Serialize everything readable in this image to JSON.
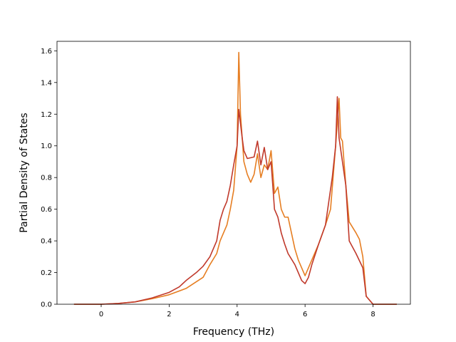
{
  "chart_data": {
    "type": "line",
    "xlabel": "Frequency (THz)",
    "ylabel": "Partial Density of States",
    "xlim": [
      -1.3,
      9.1
    ],
    "ylim": [
      0,
      1.66
    ],
    "xticks": [
      0,
      2,
      4,
      6,
      8
    ],
    "xtick_labels": [
      "0",
      "2",
      "4",
      "6",
      "8"
    ],
    "yticks": [
      0.0,
      0.2,
      0.4,
      0.6,
      0.8,
      1.0,
      1.2,
      1.4,
      1.6
    ],
    "ytick_labels": [
      "0.0",
      "0.2",
      "0.4",
      "0.6",
      "0.8",
      "1.0",
      "1.2",
      "1.4",
      "1.6"
    ],
    "grid": false,
    "series": [
      {
        "color": "#e67e22",
        "points": [
          [
            -0.8,
            0
          ],
          [
            0,
            0
          ],
          [
            0.5,
            0.005
          ],
          [
            1.0,
            0.015
          ],
          [
            1.5,
            0.035
          ],
          [
            2.0,
            0.06
          ],
          [
            2.5,
            0.1
          ],
          [
            3.0,
            0.17
          ],
          [
            3.2,
            0.25
          ],
          [
            3.4,
            0.32
          ],
          [
            3.5,
            0.4
          ],
          [
            3.6,
            0.45
          ],
          [
            3.7,
            0.5
          ],
          [
            3.8,
            0.6
          ],
          [
            3.9,
            0.72
          ],
          [
            4.0,
            1.0
          ],
          [
            4.05,
            1.59
          ],
          [
            4.1,
            1.2
          ],
          [
            4.2,
            0.9
          ],
          [
            4.3,
            0.82
          ],
          [
            4.4,
            0.77
          ],
          [
            4.5,
            0.82
          ],
          [
            4.6,
            0.95
          ],
          [
            4.7,
            0.8
          ],
          [
            4.8,
            0.88
          ],
          [
            4.9,
            0.85
          ],
          [
            5.0,
            0.97
          ],
          [
            5.1,
            0.7
          ],
          [
            5.2,
            0.74
          ],
          [
            5.3,
            0.6
          ],
          [
            5.4,
            0.55
          ],
          [
            5.5,
            0.55
          ],
          [
            5.6,
            0.45
          ],
          [
            5.7,
            0.35
          ],
          [
            5.8,
            0.28
          ],
          [
            6.0,
            0.18
          ],
          [
            6.2,
            0.28
          ],
          [
            6.4,
            0.38
          ],
          [
            6.6,
            0.5
          ],
          [
            6.75,
            0.6
          ],
          [
            6.9,
            1.0
          ],
          [
            7.0,
            1.3
          ],
          [
            7.05,
            1.05
          ],
          [
            7.1,
            1.03
          ],
          [
            7.2,
            0.75
          ],
          [
            7.3,
            0.52
          ],
          [
            7.5,
            0.45
          ],
          [
            7.6,
            0.41
          ],
          [
            7.7,
            0.3
          ],
          [
            7.8,
            0.05
          ],
          [
            8.0,
            0
          ],
          [
            8.7,
            0
          ]
        ]
      },
      {
        "color": "#c0392b",
        "points": [
          [
            -0.8,
            0
          ],
          [
            0,
            0
          ],
          [
            0.5,
            0.005
          ],
          [
            1.0,
            0.015
          ],
          [
            1.5,
            0.04
          ],
          [
            2.0,
            0.075
          ],
          [
            2.3,
            0.11
          ],
          [
            2.5,
            0.15
          ],
          [
            2.8,
            0.2
          ],
          [
            3.0,
            0.24
          ],
          [
            3.2,
            0.3
          ],
          [
            3.4,
            0.4
          ],
          [
            3.5,
            0.53
          ],
          [
            3.6,
            0.6
          ],
          [
            3.7,
            0.65
          ],
          [
            3.8,
            0.75
          ],
          [
            3.9,
            0.88
          ],
          [
            4.0,
            1.0
          ],
          [
            4.05,
            1.23
          ],
          [
            4.15,
            1.05
          ],
          [
            4.2,
            0.97
          ],
          [
            4.3,
            0.92
          ],
          [
            4.5,
            0.93
          ],
          [
            4.6,
            1.03
          ],
          [
            4.7,
            0.88
          ],
          [
            4.8,
            0.99
          ],
          [
            4.9,
            0.85
          ],
          [
            5.0,
            0.9
          ],
          [
            5.1,
            0.6
          ],
          [
            5.2,
            0.55
          ],
          [
            5.3,
            0.45
          ],
          [
            5.4,
            0.38
          ],
          [
            5.5,
            0.32
          ],
          [
            5.7,
            0.25
          ],
          [
            5.9,
            0.15
          ],
          [
            6.0,
            0.13
          ],
          [
            6.1,
            0.17
          ],
          [
            6.2,
            0.25
          ],
          [
            6.4,
            0.38
          ],
          [
            6.6,
            0.5
          ],
          [
            6.7,
            0.65
          ],
          [
            6.8,
            0.8
          ],
          [
            6.9,
            1.0
          ],
          [
            6.95,
            1.31
          ],
          [
            7.0,
            1.05
          ],
          [
            7.1,
            0.9
          ],
          [
            7.2,
            0.75
          ],
          [
            7.3,
            0.4
          ],
          [
            7.5,
            0.32
          ],
          [
            7.7,
            0.23
          ],
          [
            7.8,
            0.05
          ],
          [
            8.0,
            0
          ],
          [
            8.7,
            0
          ]
        ]
      }
    ]
  }
}
